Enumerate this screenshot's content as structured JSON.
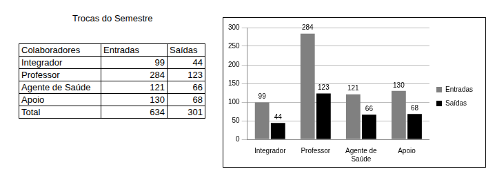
{
  "title": "Trocas do Semestre",
  "table": {
    "header": [
      "Colaboradores",
      "Entradas",
      "Saídas"
    ],
    "rows": [
      [
        "Integrador",
        99,
        44
      ],
      [
        "Professor",
        284,
        123
      ],
      [
        "Agente de Saúde",
        121,
        66
      ],
      [
        "Apoio",
        130,
        68
      ],
      [
        "Total",
        634,
        301
      ]
    ]
  },
  "chart_data": {
    "type": "bar",
    "categories": [
      "Integrador",
      "Professor",
      "Agente de Saúde",
      "Apoio"
    ],
    "series": [
      {
        "name": "Entradas",
        "color": "#808080",
        "values": [
          99,
          284,
          121,
          130
        ]
      },
      {
        "name": "Saídas",
        "color": "#000000",
        "values": [
          44,
          123,
          66,
          68
        ]
      }
    ],
    "ylim": [
      0,
      300
    ],
    "yticks": [
      0,
      50,
      100,
      150,
      200,
      250,
      300
    ],
    "grid": true,
    "legend": "right",
    "data_labels": true
  }
}
